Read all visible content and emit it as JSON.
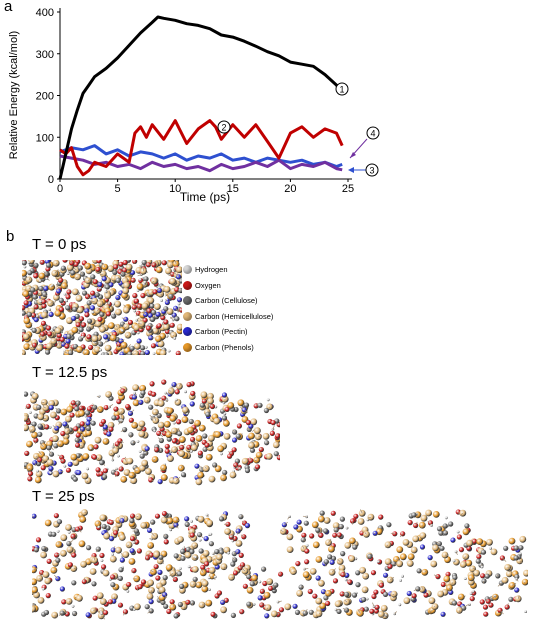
{
  "panel_a": {
    "letter": "a"
  },
  "panel_b": {
    "letter": "b",
    "snapshots": [
      {
        "label": "T = 0 ps"
      },
      {
        "label": "T = 12.5 ps"
      },
      {
        "label": "T = 25 ps"
      }
    ],
    "legend": [
      {
        "label": "Hydrogen",
        "color": "#d8d8d8"
      },
      {
        "label": "Oxygen",
        "color": "#cc1a1a"
      },
      {
        "label": "Carbon (Cellulose)",
        "color": "#707070"
      },
      {
        "label": "Carbon (Hemicellulose)",
        "color": "#e3b97a"
      },
      {
        "label": "Carbon (Pectin)",
        "color": "#2a2ad0"
      },
      {
        "label": "Carbon (Phenols)",
        "color": "#e89a2a"
      }
    ]
  },
  "chart_data": {
    "type": "line",
    "title": "",
    "xlabel": "Time (ps)",
    "ylabel": "Relative Energy (kcal/mol)",
    "xlim": [
      0,
      25
    ],
    "ylim": [
      0,
      400
    ],
    "xticks": [
      0,
      5,
      10,
      15,
      20,
      25
    ],
    "yticks": [
      0,
      100,
      200,
      300,
      400
    ],
    "series": [
      {
        "name": "1",
        "color": "#000000",
        "x": [
          0,
          0.5,
          1,
          1.5,
          2,
          2.5,
          3,
          4,
          5,
          6,
          7,
          8,
          8.5,
          9,
          10,
          11,
          12,
          13,
          14,
          15,
          16,
          17,
          18,
          19,
          20,
          21,
          22,
          23,
          24,
          24.5
        ],
        "y": [
          0,
          60,
          120,
          165,
          205,
          225,
          245,
          265,
          290,
          320,
          350,
          375,
          388,
          385,
          380,
          372,
          368,
          360,
          345,
          340,
          330,
          318,
          305,
          295,
          280,
          275,
          270,
          250,
          225,
          205
        ]
      },
      {
        "name": "2",
        "color": "#c00000",
        "x": [
          0,
          0.5,
          1,
          1.5,
          2,
          2.5,
          3,
          4,
          5,
          6,
          6.5,
          7,
          7.5,
          8,
          9,
          10,
          11,
          12,
          13,
          13.5,
          14,
          15,
          16,
          17,
          18,
          19,
          20,
          21,
          22,
          23,
          24,
          24.5
        ],
        "y": [
          70,
          60,
          75,
          30,
          10,
          20,
          40,
          30,
          60,
          40,
          110,
          125,
          100,
          130,
          95,
          140,
          85,
          120,
          140,
          125,
          95,
          130,
          100,
          130,
          90,
          50,
          110,
          125,
          100,
          120,
          110,
          80
        ]
      },
      {
        "name": "3",
        "color": "#7030a0",
        "x": [
          0,
          1,
          2,
          3,
          4,
          5,
          6,
          7,
          8,
          9,
          10,
          11,
          12,
          13,
          14,
          15,
          16,
          17,
          18,
          19,
          20,
          21,
          22,
          23,
          24,
          24.5
        ],
        "y": [
          55,
          50,
          45,
          35,
          40,
          30,
          35,
          25,
          40,
          30,
          35,
          25,
          30,
          20,
          35,
          25,
          30,
          40,
          30,
          45,
          25,
          35,
          30,
          40,
          25,
          22
        ]
      },
      {
        "name": "4",
        "color": "#2e50d0",
        "x": [
          0,
          1,
          2,
          3,
          4,
          5,
          6,
          7,
          8,
          9,
          10,
          11,
          12,
          13,
          14,
          15,
          16,
          17,
          18,
          19,
          20,
          21,
          22,
          23,
          24,
          24.5
        ],
        "y": [
          65,
          75,
          70,
          80,
          60,
          70,
          55,
          65,
          60,
          50,
          60,
          45,
          55,
          50,
          60,
          45,
          50,
          40,
          50,
          45,
          40,
          45,
          35,
          40,
          30,
          35
        ]
      }
    ]
  }
}
